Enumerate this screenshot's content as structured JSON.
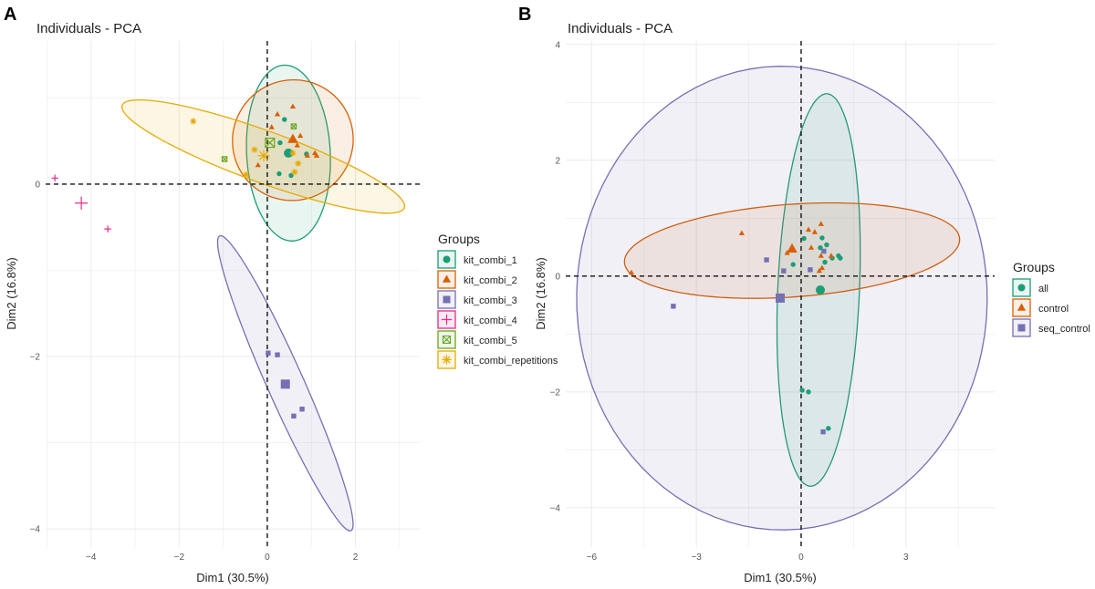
{
  "chart_data": [
    {
      "type": "scatter",
      "panel_label": "A",
      "title": "Individuals - PCA",
      "xlabel": "Dim1 (30.5%)",
      "ylabel": "Dim2 (16.8%)",
      "xlim": [
        -5.03,
        3.46
      ],
      "ylim": [
        -4.21,
        1.66
      ],
      "x_ticks": [
        -4,
        -2,
        0,
        2
      ],
      "y_ticks": [
        0,
        -2,
        -4
      ],
      "grid": true,
      "reference_lines": {
        "x": 0,
        "y": 0
      },
      "legend": {
        "title": "Groups",
        "position": "right"
      },
      "series": [
        {
          "name": "kit_combi_1",
          "color": "#1b9e77",
          "shape": "circle",
          "points": [
            [
              0.39,
              0.75
            ],
            [
              0.29,
              0.48
            ],
            [
              0.89,
              0.35
            ],
            [
              0.27,
              0.12
            ],
            [
              0.54,
              0.1
            ]
          ],
          "mean": [
            0.48,
            0.36
          ],
          "ellipse": {
            "center": [
              0.48,
              0.36
            ],
            "axis1": [
              0.95,
              0
            ],
            "axis2": [
              -0.08,
              1.02
            ]
          }
        },
        {
          "name": "kit_combi_2",
          "color": "#d95f02",
          "shape": "triangle",
          "points": [
            [
              0.58,
              0.9
            ],
            [
              0.23,
              0.81
            ],
            [
              0.1,
              0.66
            ],
            [
              0.75,
              0.56
            ],
            [
              0.68,
              0.45
            ],
            [
              1.08,
              0.36
            ],
            [
              1.12,
              0.33
            ],
            [
              0.91,
              0.33
            ],
            [
              -0.21,
              0.22
            ]
          ],
          "mean": [
            0.58,
            0.52
          ],
          "ellipse": {
            "center": [
              0.58,
              0.51
            ],
            "axis1": [
              1.37,
              0
            ],
            "axis2": [
              0.02,
              0.7
            ]
          }
        },
        {
          "name": "kit_combi_3",
          "color": "#7570b3",
          "shape": "square",
          "points": [
            [
              0.02,
              -1.96
            ],
            [
              0.23,
              -1.98
            ],
            [
              0.6,
              -2.69
            ],
            [
              0.79,
              -2.61
            ]
          ],
          "mean": [
            0.41,
            -2.32
          ],
          "ellipse": {
            "center": [
              0.41,
              -2.31
            ],
            "axis1": [
              1.49,
              -1.71
            ],
            "axis2": [
              0.38,
              0.086
            ]
          }
        },
        {
          "name": "kit_combi_4",
          "color": "#e7298a",
          "shape": "plus",
          "points": [
            [
              -4.82,
              0.07
            ],
            [
              -3.62,
              -0.52
            ]
          ],
          "mean": [
            -4.22,
            -0.22
          ],
          "ellipse": null
        },
        {
          "name": "kit_combi_5",
          "color": "#66a61e",
          "shape": "boxcross",
          "points": [
            [
              -0.97,
              0.29
            ],
            [
              0.6,
              0.67
            ]
          ],
          "mean": [
            0.06,
            0.48
          ],
          "ellipse": null
        },
        {
          "name": "kit_combi_repetitions",
          "color": "#e6ab02",
          "shape": "asterisk",
          "points": [
            [
              -1.68,
              0.73
            ],
            [
              -0.29,
              0.4
            ],
            [
              -0.48,
              0.11
            ],
            [
              0.7,
              0.24
            ],
            [
              0.62,
              0.14
            ],
            [
              0.58,
              0.36
            ]
          ],
          "mean": [
            -0.08,
            0.33
          ],
          "ellipse": {
            "center": [
              -0.09,
              0.32
            ],
            "axis1": [
              3.2,
              -0.55
            ],
            "axis2": [
              -0.24,
              0.36
            ]
          }
        }
      ]
    },
    {
      "type": "scatter",
      "panel_label": "B",
      "title": "Individuals - PCA",
      "xlabel": "Dim1 (30.5%)",
      "ylabel": "Dim2 (16.8%)",
      "xlim": [
        -6.74,
        5.54
      ],
      "ylim": [
        -4.68,
        4.06
      ],
      "x_ticks": [
        -6,
        -3,
        0,
        3
      ],
      "y_ticks": [
        4,
        2,
        0,
        -2,
        -4
      ],
      "grid": true,
      "reference_lines": {
        "x": 0,
        "y": 0
      },
      "legend": {
        "title": "Groups",
        "position": "right"
      },
      "series": [
        {
          "name": "all",
          "color": "#1b9e77",
          "shape": "circle",
          "points": [
            [
              0.08,
              0.65
            ],
            [
              0.6,
              0.66
            ],
            [
              0.73,
              0.54
            ],
            [
              0.55,
              0.49
            ],
            [
              1.07,
              0.35
            ],
            [
              1.12,
              0.31
            ],
            [
              0.89,
              0.31
            ],
            [
              0.68,
              0.24
            ],
            [
              -0.23,
              0.2
            ],
            [
              0.03,
              -1.97
            ],
            [
              0.21,
              -2.0
            ],
            [
              0.78,
              -2.63
            ]
          ],
          "mean": [
            0.55,
            -0.24
          ],
          "ellipse": {
            "center": [
              0.5,
              -0.24
            ],
            "axis1": [
              1.17,
              0
            ],
            "axis2": [
              0.23,
              3.39
            ]
          }
        },
        {
          "name": "control",
          "color": "#d95f02",
          "shape": "triangle",
          "points": [
            [
              0.57,
              0.9
            ],
            [
              0.21,
              0.8
            ],
            [
              0.39,
              0.76
            ],
            [
              -1.7,
              0.74
            ],
            [
              0.29,
              0.49
            ],
            [
              0.57,
              0.35
            ],
            [
              0.86,
              0.35
            ],
            [
              0.6,
              0.14
            ],
            [
              0.52,
              0.09
            ],
            [
              -4.86,
              0.06
            ],
            [
              -0.4,
              0.4
            ]
          ],
          "mean": [
            -0.26,
            0.47
          ],
          "ellipse": {
            "center": [
              -0.26,
              0.44
            ],
            "axis1": [
              4.8,
              0.2
            ],
            "axis2": [
              -0.05,
              0.8
            ]
          }
        },
        {
          "name": "seq_control",
          "color": "#7570b3",
          "shape": "square",
          "points": [
            [
              -0.99,
              0.28
            ],
            [
              -0.5,
              0.09
            ],
            [
              0.26,
              0.11
            ],
            [
              0.65,
              0.43
            ],
            [
              -3.66,
              -0.52
            ],
            [
              0.63,
              -2.69
            ]
          ],
          "mean": [
            -0.6,
            -0.38
          ],
          "ellipse": {
            "center": [
              -0.55,
              -0.38
            ],
            "axis1": [
              5.87,
              0.2
            ],
            "axis2": [
              -0.3,
              4.0
            ]
          }
        }
      ]
    }
  ]
}
